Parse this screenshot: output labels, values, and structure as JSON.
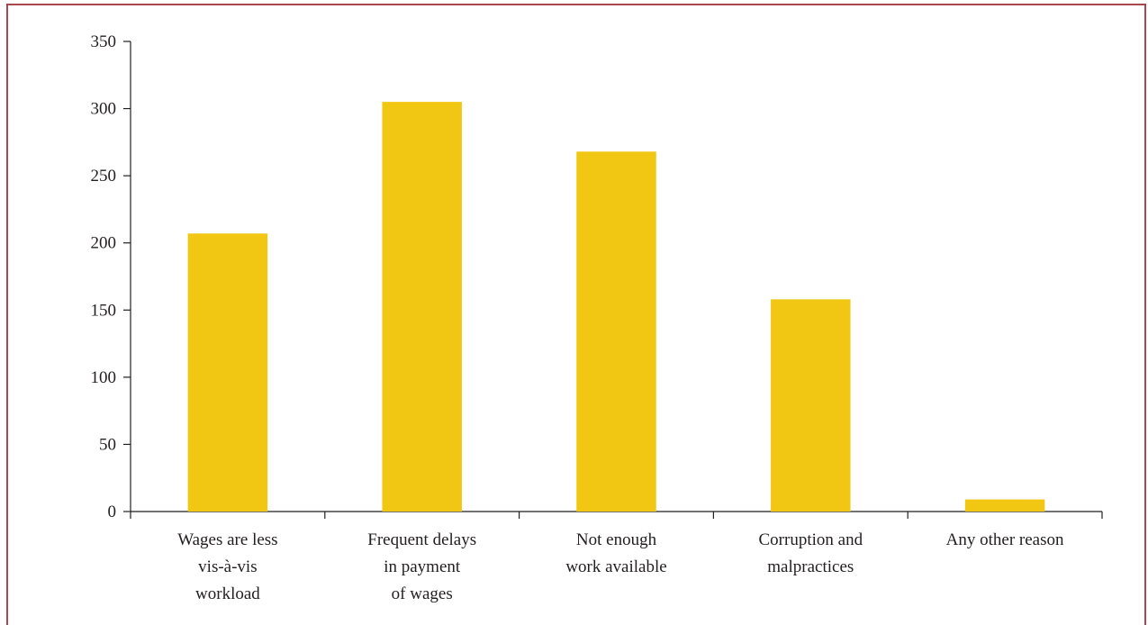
{
  "chart_data": {
    "type": "bar",
    "categories": [
      [
        "Wages are less",
        "vis-à-vis",
        "workload"
      ],
      [
        "Frequent delays",
        "in payment",
        "of wages"
      ],
      [
        "Not enough",
        "work available"
      ],
      [
        "Corruption and",
        "malpractices"
      ],
      [
        "Any other reason"
      ]
    ],
    "values": [
      207,
      305,
      268,
      158,
      9
    ],
    "ylim": [
      0,
      350
    ],
    "yticks": [
      0,
      50,
      100,
      150,
      200,
      250,
      300,
      350
    ],
    "title": "",
    "xlabel": "",
    "ylabel": "",
    "grid": false,
    "legend": "none",
    "colors": {
      "bar": "#f2c714",
      "axis": "#231f20",
      "frame": "#a8474d"
    }
  }
}
